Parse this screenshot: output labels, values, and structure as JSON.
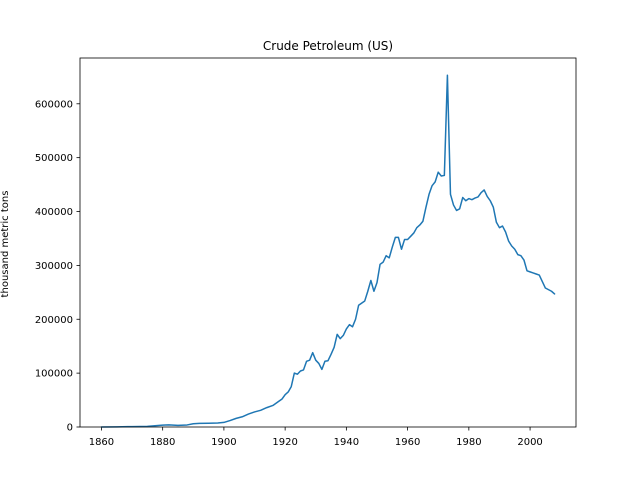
{
  "chart_data": {
    "type": "line",
    "title": "Crude Petroleum (US)",
    "xlabel": "",
    "ylabel": "thousand metric tons",
    "xlim": [
      1853,
      2015
    ],
    "ylim": [
      0,
      685000
    ],
    "xticks": [
      1860,
      1880,
      1900,
      1920,
      1940,
      1960,
      1980,
      2000
    ],
    "xtick_labels": [
      "1860",
      "1880",
      "1900",
      "1920",
      "1940",
      "1960",
      "1980",
      "2000"
    ],
    "yticks": [
      0,
      100000,
      200000,
      300000,
      400000,
      500000,
      600000
    ],
    "ytick_labels": [
      "0",
      "100000",
      "200000",
      "300000",
      "400000",
      "500000",
      "600000"
    ],
    "grid": false,
    "color": "#1f77b4",
    "series": [
      {
        "name": "Crude Petroleum (US)",
        "x": [
          1860,
          1865,
          1870,
          1875,
          1880,
          1882,
          1885,
          1888,
          1890,
          1892,
          1895,
          1898,
          1900,
          1902,
          1904,
          1906,
          1908,
          1910,
          1912,
          1914,
          1916,
          1918,
          1919,
          1920,
          1921,
          1922,
          1923,
          1924,
          1925,
          1926,
          1927,
          1928,
          1929,
          1930,
          1931,
          1932,
          1933,
          1934,
          1935,
          1936,
          1937,
          1938,
          1939,
          1940,
          1941,
          1942,
          1943,
          1944,
          1945,
          1946,
          1947,
          1948,
          1949,
          1950,
          1951,
          1952,
          1953,
          1954,
          1955,
          1956,
          1957,
          1958,
          1959,
          1960,
          1961,
          1962,
          1963,
          1964,
          1965,
          1966,
          1967,
          1968,
          1969,
          1970,
          1971,
          1972,
          1973,
          1974,
          1975,
          1976,
          1977,
          1978,
          1979,
          1980,
          1981,
          1982,
          1983,
          1984,
          1985,
          1986,
          1987,
          1988,
          1989,
          1990,
          1991,
          1992,
          1993,
          1994,
          1995,
          1996,
          1997,
          1998,
          1999,
          2000,
          2001,
          2002,
          2003,
          2004,
          2005,
          2006,
          2007,
          2008
        ],
        "values": [
          70,
          330,
          700,
          1200,
          3500,
          4000,
          3000,
          3800,
          6000,
          6800,
          7000,
          7500,
          8500,
          12000,
          16000,
          19000,
          24000,
          28000,
          31000,
          36000,
          40000,
          48000,
          52000,
          60000,
          65000,
          75000,
          100000,
          98000,
          104000,
          106000,
          122000,
          124000,
          138000,
          124000,
          118000,
          107000,
          122000,
          123000,
          135000,
          148000,
          172000,
          164000,
          170000,
          182000,
          190000,
          186000,
          200000,
          226000,
          230000,
          234000,
          252000,
          272000,
          252000,
          268000,
          302000,
          306000,
          318000,
          314000,
          334000,
          352000,
          352000,
          330000,
          348000,
          348000,
          354000,
          360000,
          370000,
          375000,
          382000,
          408000,
          432000,
          448000,
          455000,
          473000,
          466000,
          467000,
          653000,
          432000,
          412000,
          402000,
          405000,
          426000,
          420000,
          424000,
          422000,
          425000,
          427000,
          435000,
          440000,
          428000,
          420000,
          408000,
          380000,
          370000,
          373000,
          362000,
          345000,
          336000,
          330000,
          320000,
          318000,
          310000,
          290000,
          288000,
          286000,
          284000,
          282000,
          270000,
          258000,
          255000,
          252000,
          247000
        ]
      }
    ]
  }
}
